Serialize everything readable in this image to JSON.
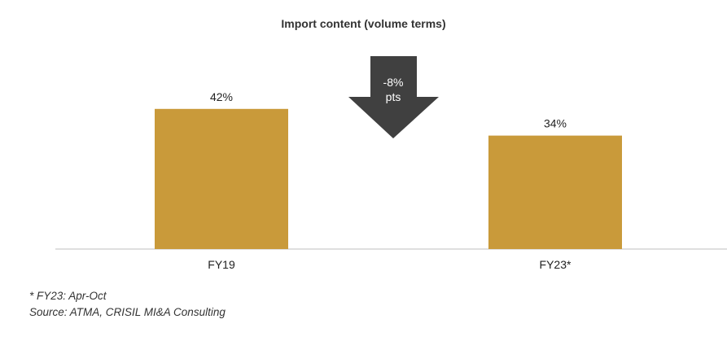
{
  "chart_data": {
    "type": "bar",
    "title": "Import content (volume terms)",
    "categories": [
      "FY19",
      "FY23*"
    ],
    "values": [
      42,
      34
    ],
    "data_labels": [
      "42%",
      "34%"
    ],
    "unit": "%",
    "ylim": [
      0,
      50
    ],
    "grid": false,
    "legend": "none",
    "bar_color": "#C99A3A",
    "annotation": {
      "type": "down-arrow",
      "line1": "-8%",
      "line2": "pts",
      "color": "#404040",
      "text_color": "#ffffff"
    }
  },
  "footnotes": {
    "note": "* FY23: Apr-Oct",
    "source": "Source: ATMA, CRISIL MI&A Consulting"
  }
}
